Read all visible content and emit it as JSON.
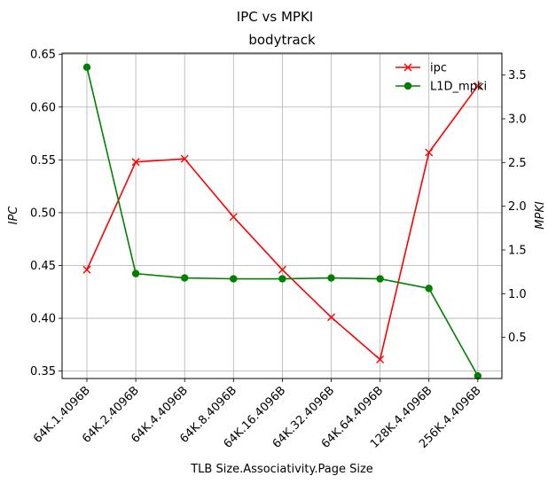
{
  "chart_data": {
    "type": "line",
    "title": "IPC vs MPKI",
    "subtitle": "bodytrack",
    "xlabel": "TLB Size.Associativity.Page Size",
    "ylabel_left": "IPC",
    "ylabel_right": "MPKI",
    "categories": [
      "64K.1.4096B",
      "64K.2.4096B",
      "64K.4.4096B",
      "64K.8.4096B",
      "64K.16.4096B",
      "64K.32.4096B",
      "64K.64.4096B",
      "128K.4.4096B",
      "256K.4.4096B"
    ],
    "ylim_left": [
      0.343,
      0.651
    ],
    "ylim_right": [
      0.03,
      3.75
    ],
    "yticks_left": [
      "0.35",
      "0.40",
      "0.45",
      "0.50",
      "0.55",
      "0.60",
      "0.65"
    ],
    "yticks_right": [
      "0.5",
      "1.0",
      "1.5",
      "2.0",
      "2.5",
      "3.0",
      "3.5"
    ],
    "grid": true,
    "legend_position": "top-right",
    "series": [
      {
        "name": "ipc",
        "axis": "left",
        "color": "#ff0000",
        "marker": "x",
        "values": [
          0.446,
          0.548,
          0.551,
          0.496,
          0.446,
          0.401,
          0.361,
          0.557,
          0.62
        ]
      },
      {
        "name": "L1D_mpki",
        "axis": "right",
        "color": "#008000",
        "marker": "o",
        "values": [
          3.59,
          1.23,
          1.18,
          1.17,
          1.17,
          1.18,
          1.17,
          1.06,
          0.06
        ]
      }
    ]
  }
}
